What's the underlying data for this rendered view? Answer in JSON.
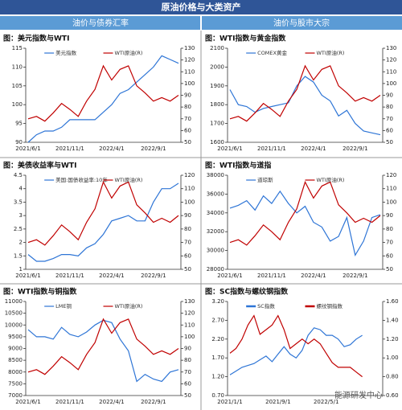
{
  "header": {
    "title": "原油价格与大类资产",
    "left": "油价与债券汇率",
    "right": "油价与股市大宗"
  },
  "watermark": "能源研发中心",
  "chart_data": [
    {
      "type": "line",
      "title": "图：美元指数与WTI",
      "categories": [
        "2021/6/1",
        null,
        null,
        null,
        null,
        "2021/11/1",
        null,
        null,
        null,
        null,
        "2022/4/1",
        null,
        null,
        null,
        null,
        "2022/9/1",
        null,
        null,
        null
      ],
      "series": [
        {
          "name": "美元指数",
          "color": "#2e75d6",
          "values": [
            90,
            92,
            93,
            93,
            94,
            96,
            96,
            96,
            96,
            98,
            100,
            103,
            104,
            106,
            108,
            110,
            113,
            112,
            111
          ]
        },
        {
          "name": "WTI原油(R)",
          "color": "#c00000",
          "axis": "y2",
          "values": [
            70,
            72,
            68,
            75,
            83,
            78,
            72,
            85,
            95,
            115,
            103,
            112,
            115,
            98,
            92,
            85,
            88,
            85,
            90
          ]
        }
      ],
      "ylim": [
        90,
        115
      ],
      "yticks": [
        90,
        95,
        100,
        105,
        110,
        115
      ],
      "y2lim": [
        50,
        130
      ],
      "y2ticks": [
        50,
        60,
        70,
        80,
        90,
        100,
        110,
        120,
        130
      ]
    },
    {
      "type": "line",
      "title": "图：WTI指数与黄金指数",
      "categories": [
        "2021/6/1",
        null,
        null,
        null,
        null,
        "2021/11/1",
        null,
        null,
        null,
        null,
        "2022/4/1",
        null,
        null,
        null,
        null,
        "2022/9/1",
        null,
        null,
        null
      ],
      "series": [
        {
          "name": "COMEX黄金",
          "color": "#2e75d6",
          "values": [
            1880,
            1800,
            1790,
            1760,
            1780,
            1790,
            1800,
            1810,
            1900,
            1950,
            1920,
            1850,
            1820,
            1740,
            1770,
            1700,
            1660,
            1650,
            1640
          ]
        },
        {
          "name": "WTI原油(R)",
          "color": "#c00000",
          "axis": "y2",
          "values": [
            70,
            72,
            68,
            75,
            83,
            78,
            72,
            85,
            95,
            115,
            103,
            112,
            115,
            98,
            92,
            85,
            88,
            85,
            90
          ]
        }
      ],
      "ylim": [
        1600,
        2100
      ],
      "yticks": [
        1600,
        1700,
        1800,
        1900,
        2000,
        2100
      ],
      "y2lim": [
        50,
        130
      ],
      "y2ticks": [
        50,
        60,
        70,
        80,
        90,
        100,
        110,
        120,
        130
      ]
    },
    {
      "type": "line",
      "title": "图：美债收益率与WTI",
      "categories": [
        "2021/6/1",
        null,
        null,
        null,
        null,
        "2021/11/1",
        null,
        null,
        null,
        null,
        "2022/4/1",
        null,
        null,
        null,
        null,
        "2022/9/1",
        null,
        null,
        null
      ],
      "series": [
        {
          "name": "美国:国债收益率:10年",
          "color": "#2e75d6",
          "values": [
            1.55,
            1.3,
            1.3,
            1.4,
            1.55,
            1.55,
            1.5,
            1.8,
            1.95,
            2.3,
            2.8,
            2.9,
            3.0,
            2.8,
            2.8,
            3.5,
            4.0,
            4.0,
            4.2
          ]
        },
        {
          "name": "WTI原油(R)",
          "color": "#c00000",
          "axis": "y2",
          "values": [
            70,
            72,
            68,
            75,
            83,
            78,
            72,
            85,
            95,
            115,
            103,
            112,
            115,
            98,
            92,
            85,
            88,
            85,
            90
          ]
        }
      ],
      "ylim": [
        1,
        4.5
      ],
      "yticks": [
        1,
        1.5,
        2,
        2.5,
        3,
        3.5,
        4,
        4.5
      ],
      "y2lim": [
        50,
        120
      ],
      "y2ticks": [
        50,
        60,
        70,
        80,
        90,
        100,
        110,
        120
      ]
    },
    {
      "type": "line",
      "title": "图：WTI指数与道指",
      "categories": [
        "2021/6/1",
        null,
        null,
        null,
        null,
        "2021/11/1",
        null,
        null,
        null,
        null,
        "2022/4/1",
        null,
        null,
        null,
        null,
        "2022/9/1",
        null,
        null,
        null
      ],
      "series": [
        {
          "name": "道琼斯",
          "color": "#2e75d6",
          "values": [
            34500,
            34800,
            35300,
            34300,
            35800,
            35000,
            36300,
            35000,
            34000,
            34700,
            33000,
            32500,
            31000,
            31500,
            33500,
            29500,
            31000,
            33500,
            33800
          ]
        },
        {
          "name": "WTI原油(R)",
          "color": "#c00000",
          "axis": "y2",
          "values": [
            70,
            72,
            68,
            75,
            83,
            78,
            72,
            85,
            95,
            115,
            103,
            112,
            115,
            98,
            92,
            85,
            88,
            85,
            90
          ]
        }
      ],
      "ylim": [
        28000,
        38000
      ],
      "yticks": [
        28000,
        30000,
        32000,
        34000,
        36000,
        38000
      ],
      "y2lim": [
        50,
        120
      ],
      "y2ticks": [
        50,
        60,
        70,
        80,
        90,
        100,
        110,
        120
      ]
    },
    {
      "type": "line",
      "title": "图：WTI指数与铜指数",
      "categories": [
        "2021/6/1",
        null,
        null,
        null,
        null,
        "2021/11/1",
        null,
        null,
        null,
        null,
        "2022/4/1",
        null,
        null,
        null,
        null,
        "2022/9/1",
        null,
        null,
        null
      ],
      "series": [
        {
          "name": "LME铜",
          "color": "#2e75d6",
          "values": [
            9800,
            9500,
            9500,
            9400,
            9900,
            9600,
            9500,
            9700,
            10000,
            10200,
            10100,
            9400,
            8900,
            7600,
            7900,
            7700,
            7600,
            8000,
            8100
          ]
        },
        {
          "name": "WTI原油(R)",
          "color": "#c00000",
          "axis": "y2",
          "values": [
            70,
            72,
            68,
            75,
            83,
            78,
            72,
            85,
            95,
            115,
            103,
            112,
            115,
            98,
            92,
            85,
            88,
            85,
            90
          ]
        }
      ],
      "ylim": [
        7000,
        11000
      ],
      "yticks": [
        7000,
        7500,
        8000,
        8500,
        9000,
        9500,
        10000,
        10500,
        11000
      ],
      "y2lim": [
        50,
        130
      ],
      "y2ticks": [
        50,
        60,
        70,
        80,
        90,
        100,
        110,
        120,
        130
      ]
    },
    {
      "type": "line",
      "title": "图：SC指数与螺纹钢指数",
      "categories": [
        "2021/1/1",
        null,
        null,
        null,
        null,
        null,
        null,
        null,
        "2021/9/1",
        null,
        null,
        null,
        null,
        null,
        null,
        null,
        "2022/5/1",
        null,
        null,
        null,
        null,
        null,
        null
      ],
      "series": [
        {
          "name": "SC指数",
          "color": "#2e75d6",
          "values": [
            1.25,
            1.35,
            1.45,
            1.5,
            1.55,
            1.65,
            1.75,
            1.6,
            1.8,
            2.0,
            1.8,
            1.7,
            1.9,
            2.3,
            2.5,
            2.45,
            2.3,
            2.3,
            2.2,
            2.0,
            2.05,
            2.2,
            2.3
          ]
        },
        {
          "name": "螺纹钢指数",
          "color": "#c00000",
          "axis": "y2",
          "values": [
            1.05,
            1.1,
            1.2,
            1.35,
            1.45,
            1.25,
            1.3,
            1.35,
            1.45,
            1.3,
            1.1,
            1.15,
            1.2,
            1.15,
            1.2,
            1.15,
            1.05,
            0.95,
            0.9,
            0.9,
            0.9,
            0.85,
            0.8
          ]
        }
      ],
      "ylim": [
        0.7,
        3.2
      ],
      "yticks": [
        {
          "value": 0.7,
          "label": "0.70"
        },
        {
          "value": 1.2,
          "label": "1.20"
        },
        {
          "value": 1.7,
          "label": "1.70"
        },
        {
          "value": 2.2,
          "label": "2.20"
        },
        {
          "value": 2.7,
          "label": "2.70"
        },
        {
          "value": 3.2,
          "label": "3.20"
        }
      ],
      "y2lim": [
        0.6,
        1.6
      ],
      "y2ticks": [
        {
          "value": 0.6,
          "label": "0.60"
        },
        {
          "value": 0.8,
          "label": "0.80"
        },
        {
          "value": 1,
          "label": "1.00"
        },
        {
          "value": 1.2,
          "label": "1.20"
        },
        {
          "value": 1.4,
          "label": "1.40"
        },
        {
          "value": 1.6,
          "label": "1.60"
        }
      ]
    }
  ]
}
